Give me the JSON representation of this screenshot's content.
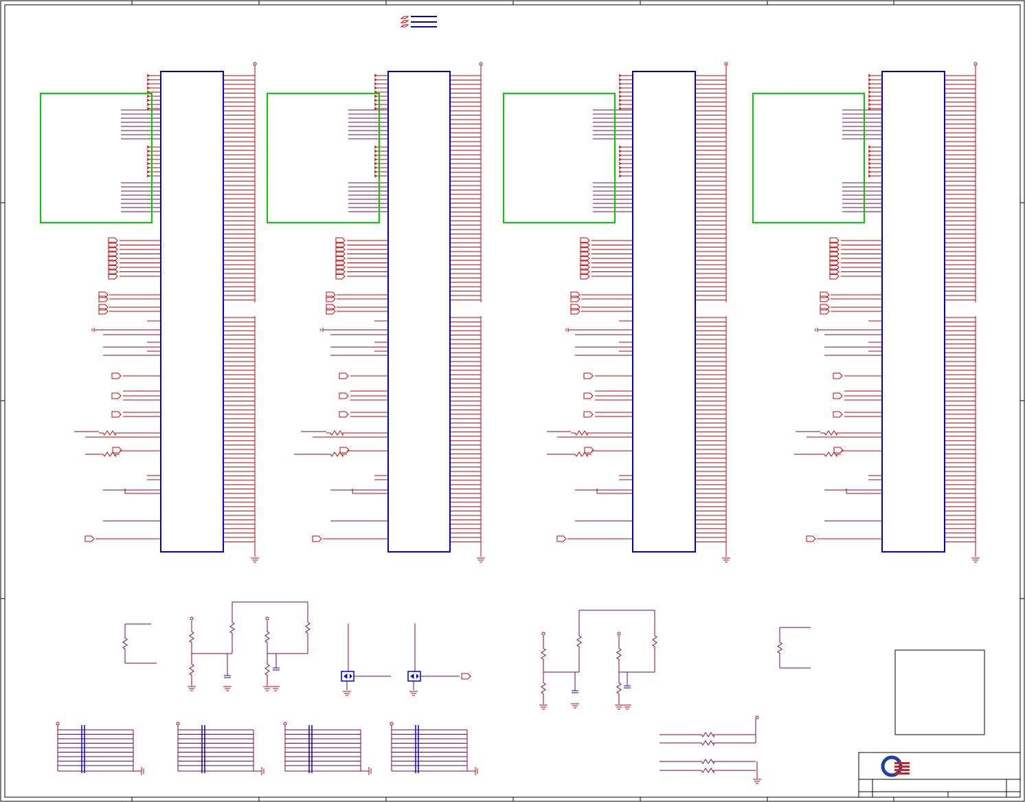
{
  "sheet": {
    "zone_columns": 8,
    "zone_rows": 4,
    "title_block": {
      "logo": "quanta-logo-icon",
      "title": "",
      "size": "",
      "document_number": "",
      "rev": "",
      "date": "",
      "sheet": ""
    }
  },
  "colors": {
    "frame": "#000000",
    "wire": "#c00000",
    "net_wire": "#800040",
    "ic_body": "#0000cc",
    "highlight_box": "#00cc00",
    "component": "#0000cc"
  },
  "dram_chips": [
    {
      "name": "dram-chip-1"
    },
    {
      "name": "dram-chip-2"
    },
    {
      "name": "dram-chip-3"
    },
    {
      "name": "dram-chip-4"
    }
  ]
}
